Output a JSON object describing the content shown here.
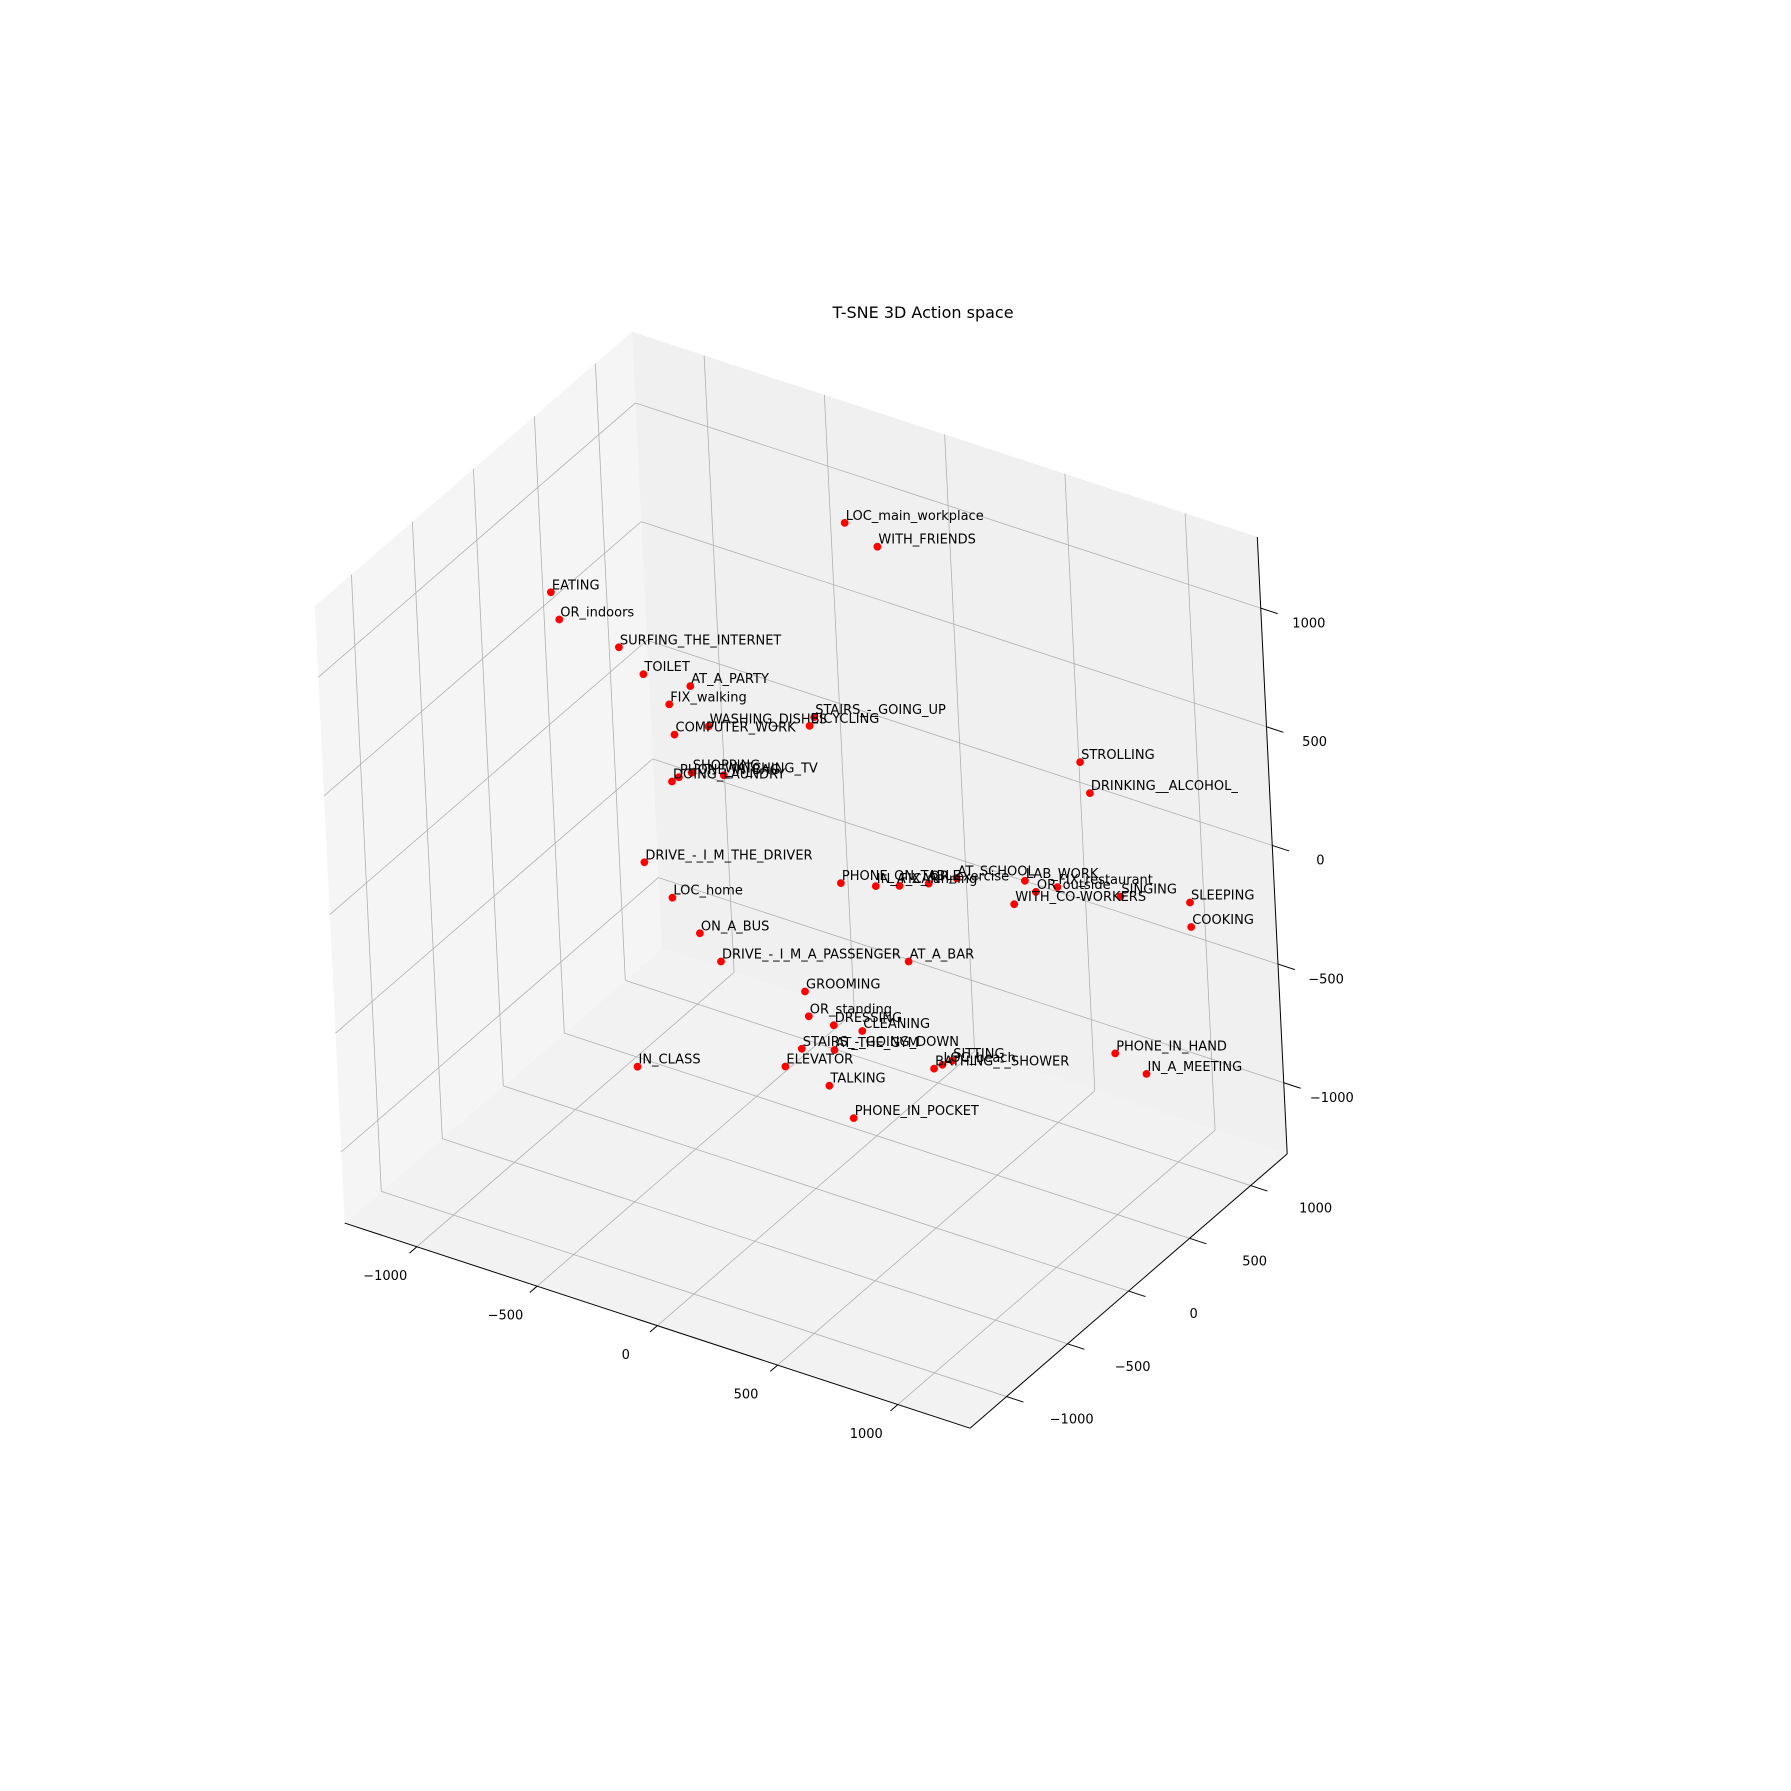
{
  "chart_data": {
    "type": "scatter",
    "title": "T-SNE 3D Action space",
    "marker_color": "#ff0000",
    "pane_colors": {
      "back": "#f0f0f0",
      "side": "#f5f5f5",
      "floor": "#f2f2f2",
      "grid": "#b0b0b0"
    },
    "axes": {
      "x": {
        "ticks": [
          -1000,
          -500,
          0,
          500,
          1000
        ],
        "tick_labels": [
          "−1000",
          "−500",
          "0",
          "500",
          "1000"
        ]
      },
      "y": {
        "ticks": [
          -1000,
          -500,
          0,
          500,
          1000
        ],
        "tick_labels": [
          "−1000",
          "−500",
          "0",
          "500",
          "1000"
        ]
      },
      "z": {
        "ticks": [
          -1000,
          -500,
          0,
          500,
          1000
        ],
        "tick_labels": [
          "−1000",
          "−500",
          "0",
          "500",
          "1000"
        ]
      }
    },
    "points": [
      {
        "label": "LOC_main_workplace",
        "x": -233,
        "y": 914,
        "z": 1021
      },
      {
        "label": "WITH_FRIENDS",
        "x": -100,
        "y": 914,
        "z": 965
      },
      {
        "label": "STROLLING",
        "x": 881,
        "y": 600,
        "z": 523
      },
      {
        "label": "DRINKING__ALCOHOL_",
        "x": 916,
        "y": 600,
        "z": 404
      },
      {
        "label": "EATING",
        "x": -1108,
        "y": 205,
        "z": 753
      },
      {
        "label": "OR_indoors",
        "x": -1078,
        "y": 205,
        "z": 648
      },
      {
        "label": "SURFING_THE_INTERNET",
        "x": -832,
        "y": 205,
        "z": 613
      },
      {
        "label": "TOILET",
        "x": -734,
        "y": 205,
        "z": 532
      },
      {
        "label": "AT_A_PARTY",
        "x": -538,
        "y": 205,
        "z": 547
      },
      {
        "label": "FIX_walking",
        "x": -631,
        "y": 205,
        "z": 439
      },
      {
        "label": "WASHING_DISHES",
        "x": -469,
        "y": 205,
        "z": 400
      },
      {
        "label": "COMPUTER_WORK",
        "x": -615,
        "y": 205,
        "z": 317
      },
      {
        "label": "WATCHING_TV",
        "x": -415,
        "y": 205,
        "z": 212
      },
      {
        "label": "SHOPPING",
        "x": -550,
        "y": 205,
        "z": 178
      },
      {
        "label": "PHONE_IN_BAG",
        "x": -605,
        "y": 205,
        "z": 141
      },
      {
        "label": "DOING_LAUNDRY",
        "x": -635,
        "y": 205,
        "z": 113
      },
      {
        "label": "STAIRS_-_GOING_UP",
        "x": 89,
        "y": 0,
        "z": 716
      },
      {
        "label": "BICYCLING",
        "x": 68,
        "y": 0,
        "z": 672
      },
      {
        "label": "SINGING",
        "x": 1236,
        "y": 205,
        "z": 250
      },
      {
        "label": "SLEEPING",
        "x": 1639,
        "y": 0,
        "z": 450
      },
      {
        "label": "COOKING",
        "x": 1639,
        "y": 0,
        "z": 347
      },
      {
        "label": "LAB_WORK",
        "x": 946,
        "y": 0,
        "z": 311
      },
      {
        "label": "FIX_restaurant",
        "x": 1082,
        "y": 0,
        "z": 330
      },
      {
        "label": "OR_outside",
        "x": 990,
        "y": 0,
        "z": 279
      },
      {
        "label": "AT_SCHOOL",
        "x": 658,
        "y": 0,
        "z": 226
      },
      {
        "label": "WITH_CO-WORKERS",
        "x": 896,
        "y": 0,
        "z": 196
      },
      {
        "label": "OR_exercise",
        "x": 539,
        "y": 0,
        "z": 164
      },
      {
        "label": "FIX_running",
        "x": 415,
        "y": 0,
        "z": 113
      },
      {
        "label": "IN_A_CAR",
        "x": 315,
        "y": 0,
        "z": 79
      },
      {
        "label": "PHONE_ON_TABLE",
        "x": 168,
        "y": 0,
        "z": 43
      },
      {
        "label": "AT_A_BAR",
        "x": 438,
        "y": 0,
        "z": -198
      },
      {
        "label": "PHONE_IN_HAND",
        "x": 1292,
        "y": 0,
        "z": -301
      },
      {
        "label": "IN_A_MEETING",
        "x": 1420,
        "y": 0,
        "z": -345
      },
      {
        "label": "DRIVE_-_I_M_THE_DRIVER",
        "x": -768,
        "y": 205,
        "z": -272
      },
      {
        "label": "LOC_home",
        "x": -657,
        "y": 205,
        "z": -384
      },
      {
        "label": "ON_A_BUS",
        "x": -548,
        "y": 205,
        "z": -498
      },
      {
        "label": "DRIVE_-_I_M_A_PASSENGER",
        "x": -465,
        "y": 205,
        "z": -589
      },
      {
        "label": "GROOMING",
        "x": 104,
        "y": -205,
        "z": -344
      },
      {
        "label": "OR_standing",
        "x": 115,
        "y": -205,
        "z": -445
      },
      {
        "label": "DRESSING",
        "x": 219,
        "y": -205,
        "z": -448
      },
      {
        "label": "CLEANING",
        "x": 338,
        "y": -205,
        "z": -433
      },
      {
        "label": "SITTING",
        "x": 712,
        "y": -205,
        "z": -434
      },
      {
        "label": "LOC_beach",
        "x": 670,
        "y": -205,
        "z": -465
      },
      {
        "label": "BATHING_-_SHOWER",
        "x": 634,
        "y": -205,
        "z": -493
      },
      {
        "label": "AT_THE_GYM",
        "x": 217,
        "y": -205,
        "z": -553
      },
      {
        "label": "STAIRS_-_GOING_DOWN",
        "x": 79,
        "y": -205,
        "z": -594
      },
      {
        "label": "ELEVATOR",
        "x": 6,
        "y": -205,
        "z": -693
      },
      {
        "label": "TALKING",
        "x": 188,
        "y": -205,
        "z": -713
      },
      {
        "label": "PHONE_IN_POCKET",
        "x": 284,
        "y": -205,
        "z": -818
      },
      {
        "label": "IN_CLASS",
        "x": -839,
        "y": 205,
        "z": -1157
      }
    ]
  }
}
